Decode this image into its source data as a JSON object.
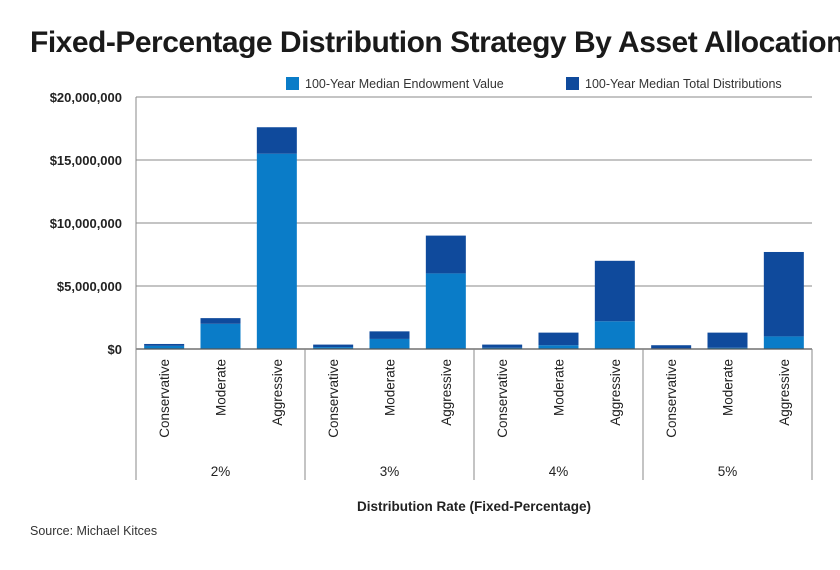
{
  "title": "Fixed-Percentage Distribution Strategy By Asset Allocation",
  "source": "Source: Michael Kitces",
  "colors": {
    "endowment": "#0a7cc8",
    "distributions": "#0f4a9c",
    "grid": "#8a8a8a",
    "axis": "#555555"
  },
  "chart_data": {
    "type": "bar",
    "stacked": true,
    "xlabel": "Distribution Rate (Fixed-Percentage)",
    "ylabel": "",
    "ylim": [
      0,
      20000000
    ],
    "yticks": [
      {
        "value": 0,
        "label": "$0"
      },
      {
        "value": 5000000,
        "label": "$5,000,000"
      },
      {
        "value": 10000000,
        "label": "$10,000,000"
      },
      {
        "value": 15000000,
        "label": "$15,000,000"
      },
      {
        "value": 20000000,
        "label": "$20,000,000"
      }
    ],
    "grid": true,
    "legend_position": "top-right",
    "groups": [
      "2%",
      "3%",
      "4%",
      "5%"
    ],
    "categories": [
      "Conservative",
      "Moderate",
      "Aggressive"
    ],
    "series": [
      {
        "name": "100-Year Median Endowment Value",
        "values": [
          [
            250000,
            2000000,
            15500000
          ],
          [
            150000,
            800000,
            6000000
          ],
          [
            100000,
            300000,
            2200000
          ],
          [
            50000,
            100000,
            1000000
          ]
        ]
      },
      {
        "name": "100-Year Median Total Distributions",
        "values": [
          [
            150000,
            450000,
            2100000
          ],
          [
            200000,
            600000,
            3000000
          ],
          [
            250000,
            1000000,
            4800000
          ],
          [
            250000,
            1200000,
            6700000
          ]
        ]
      }
    ]
  }
}
